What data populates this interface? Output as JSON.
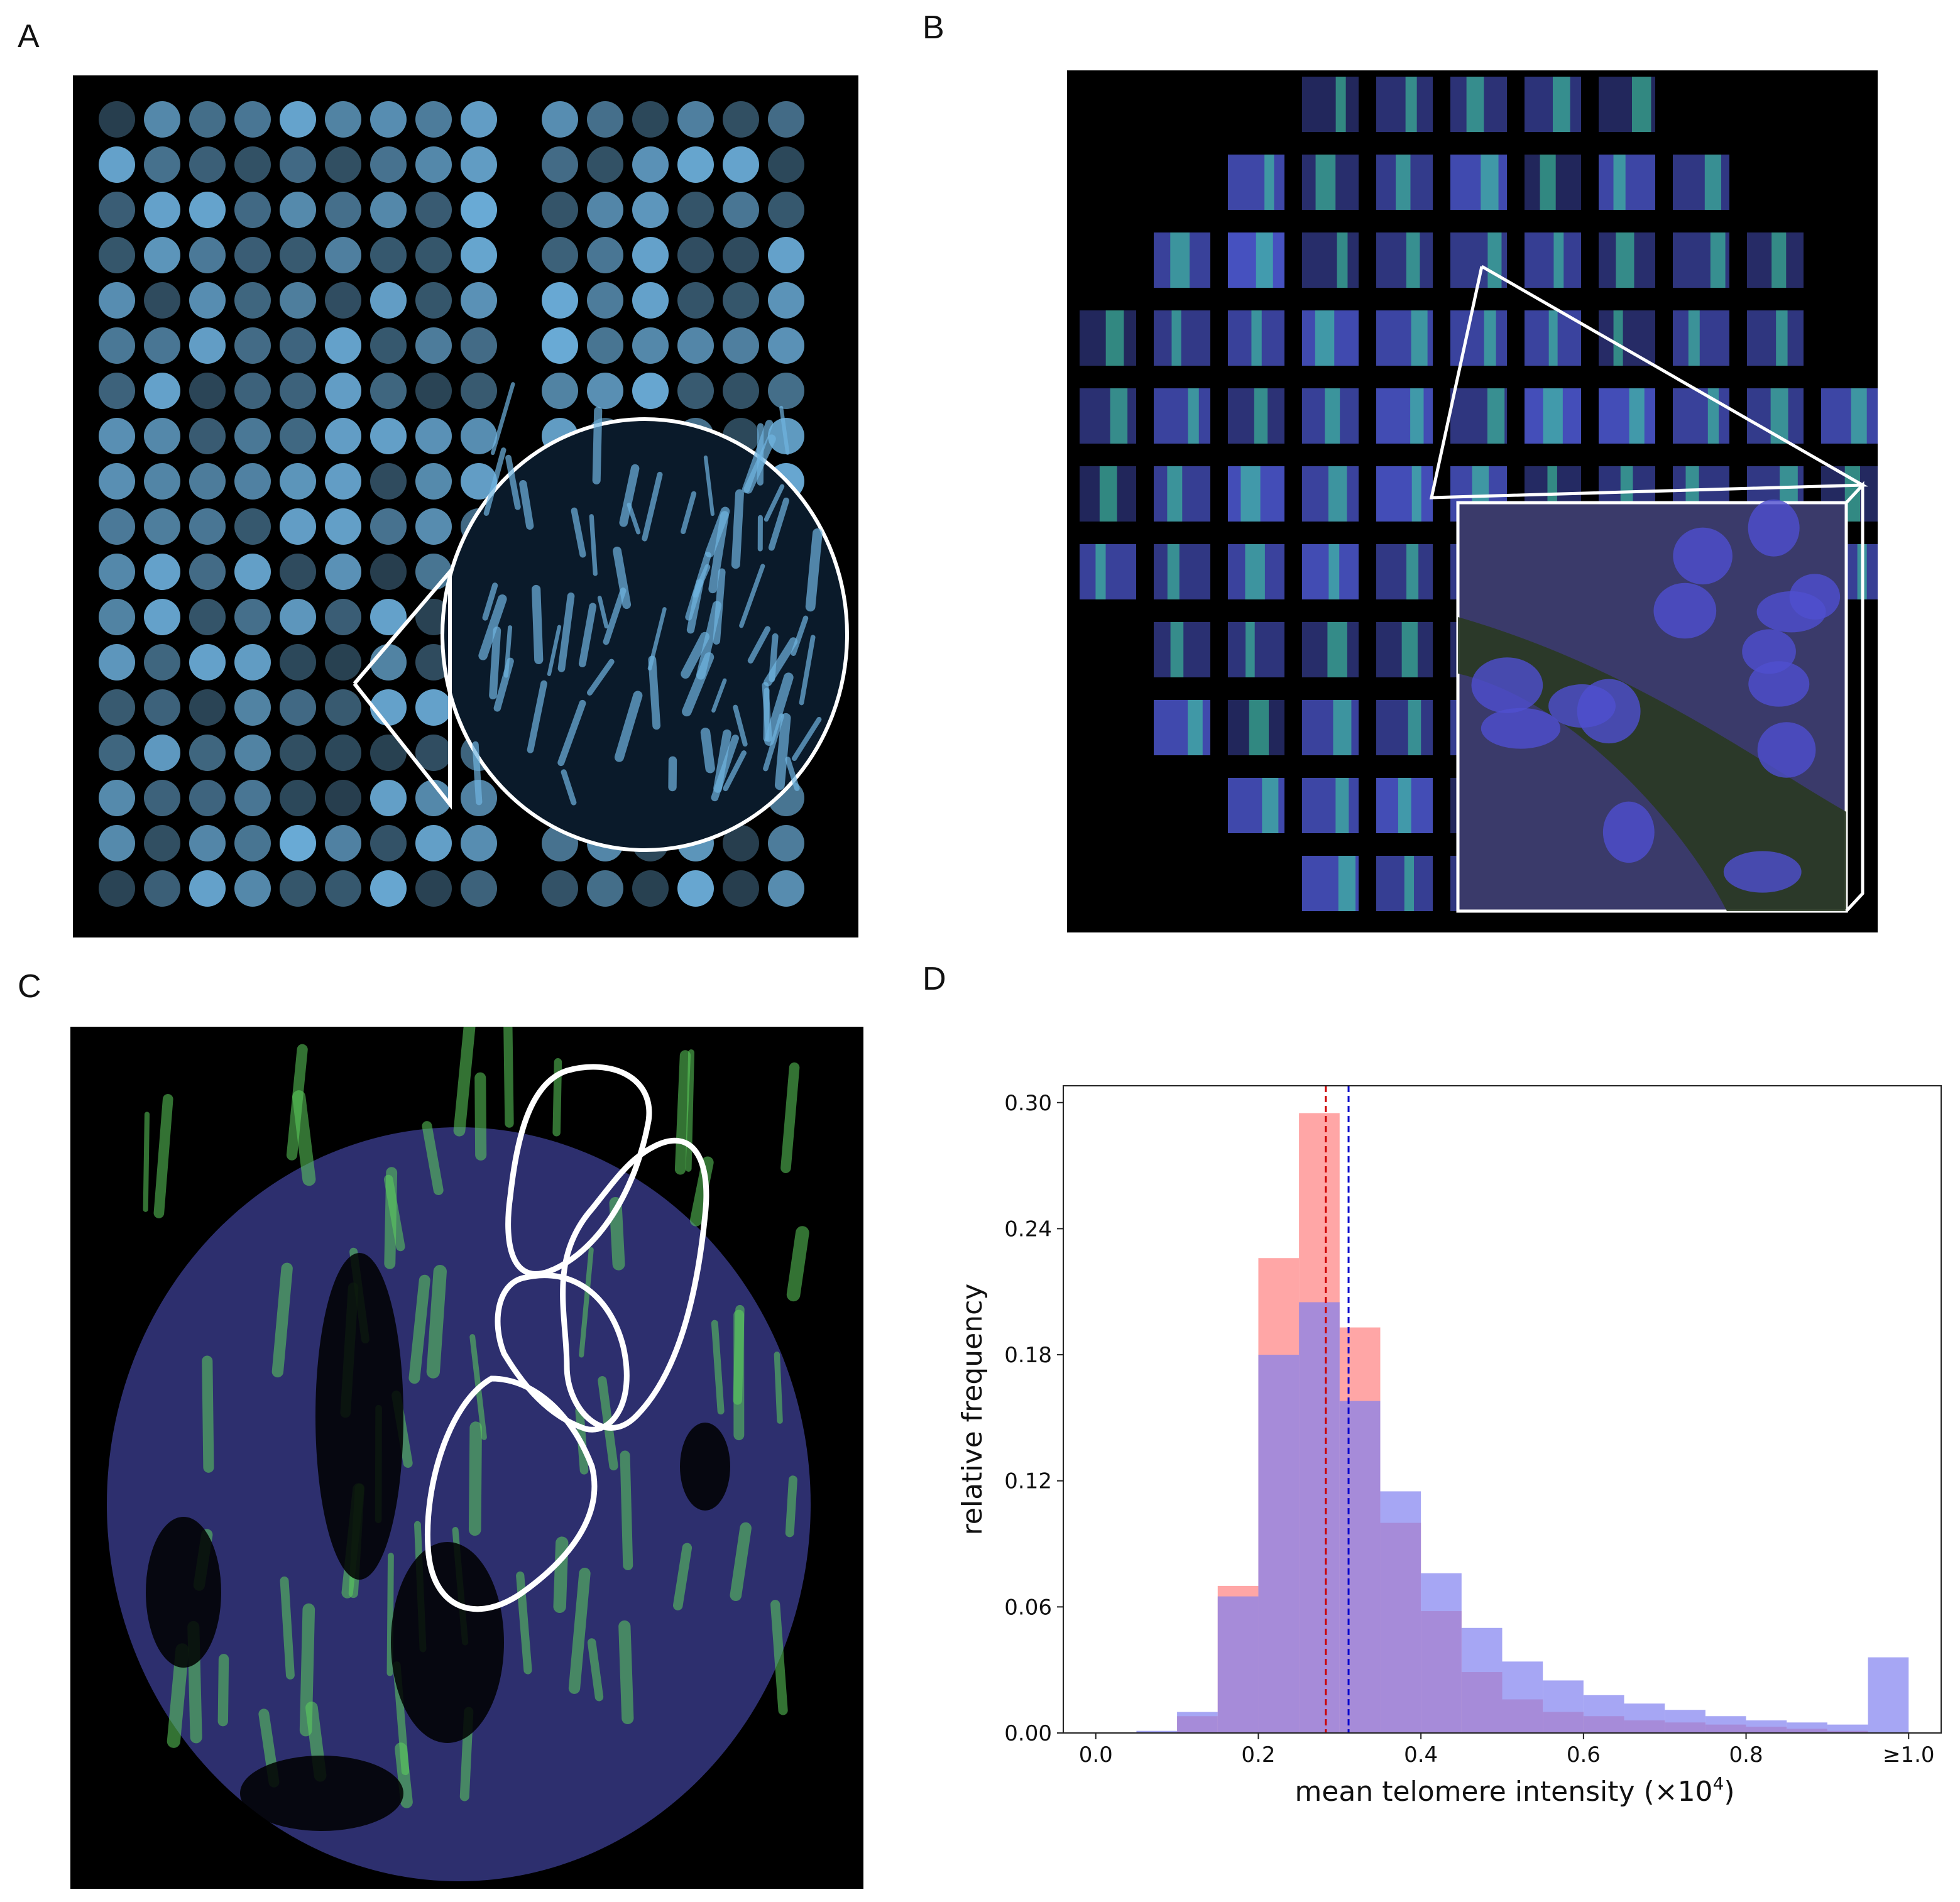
{
  "panel_labels": {
    "a": "A",
    "b": "B",
    "c": "C",
    "d": "D"
  },
  "images": {
    "a": {
      "description_icon": "tissue-microarray-cores-image",
      "color": "#6fb3e0"
    },
    "b": {
      "description_icon": "core-tile-grid-image",
      "colors": [
        "#4a55c9",
        "#3fd8a0"
      ]
    },
    "c": {
      "description_icon": "tissue-core-with-outlined-regions-image",
      "colors": [
        "#6a6ad8",
        "#5ccf5c"
      ]
    }
  },
  "chart_data": {
    "type": "bar",
    "xlabel": "mean telomere intensity (×10",
    "xlabel_sup": "4",
    "xlabel_end": ")",
    "ylabel": "relative frequency",
    "x_tick_labels": [
      "0.0",
      "0.2",
      "0.4",
      "0.6",
      "0.8",
      "≥1.0"
    ],
    "x_ticks": [
      0.0,
      0.2,
      0.4,
      0.6,
      0.8,
      1.0
    ],
    "y_tick_labels": [
      "0.00",
      "0.06",
      "0.12",
      "0.18",
      "0.24",
      "0.30"
    ],
    "y_ticks": [
      0.0,
      0.06,
      0.12,
      0.18,
      0.24,
      0.3
    ],
    "xlim": [
      -0.04,
      1.04
    ],
    "ylim": [
      0,
      0.308
    ],
    "bin_width": 0.05,
    "bin_starts": [
      0.0,
      0.05,
      0.1,
      0.15,
      0.2,
      0.25,
      0.3,
      0.35,
      0.4,
      0.45,
      0.5,
      0.55,
      0.6,
      0.65,
      0.7,
      0.75,
      0.8,
      0.85,
      0.9,
      0.95
    ],
    "series": [
      {
        "color": "#ff8080",
        "opacity": 0.7,
        "mean": 0.283,
        "values": [
          0.0,
          0.0,
          0.008,
          0.07,
          0.226,
          0.295,
          0.193,
          0.1,
          0.058,
          0.029,
          0.016,
          0.01,
          0.008,
          0.006,
          0.005,
          0.004,
          0.003,
          0.002,
          0.001,
          0.0
        ],
        "mean_color": "#cc0000"
      },
      {
        "color": "#8080f0",
        "opacity": 0.7,
        "mean": 0.311,
        "values": [
          0.0,
          0.001,
          0.01,
          0.065,
          0.18,
          0.205,
          0.158,
          0.115,
          0.076,
          0.05,
          0.034,
          0.025,
          0.018,
          0.014,
          0.011,
          0.008,
          0.006,
          0.005,
          0.004,
          0.036
        ],
        "mean_color": "#0000cc"
      }
    ],
    "grid": false
  }
}
